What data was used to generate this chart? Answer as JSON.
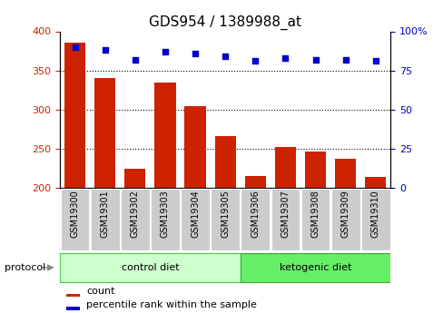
{
  "title": "GDS954 / 1389988_at",
  "samples": [
    "GSM19300",
    "GSM19301",
    "GSM19302",
    "GSM19303",
    "GSM19304",
    "GSM19305",
    "GSM19306",
    "GSM19307",
    "GSM19308",
    "GSM19309",
    "GSM19310"
  ],
  "counts": [
    385,
    340,
    224,
    335,
    304,
    266,
    215,
    252,
    246,
    237,
    214
  ],
  "percentile_ranks": [
    90,
    88,
    82,
    87,
    86,
    84,
    81,
    83,
    82,
    82,
    81
  ],
  "ylim_left": [
    200,
    400
  ],
  "ylim_right": [
    0,
    100
  ],
  "yticks_left": [
    200,
    250,
    300,
    350,
    400
  ],
  "yticks_right": [
    0,
    25,
    50,
    75,
    100
  ],
  "bar_color": "#cc2200",
  "dot_color": "#0000cc",
  "bar_bottom": 200,
  "ctrl_color": "#ccffcc",
  "keto_color": "#66ee66",
  "ctrl_border": "#44cc44",
  "keto_border": "#33aa33",
  "bg_color": "#ffffff",
  "tick_label_bg": "#cccccc",
  "title_fontsize": 11,
  "axis_fontsize": 8,
  "tick_fontsize": 7,
  "legend_fontsize": 8,
  "proto_fontsize": 8,
  "group_fontsize": 8,
  "dotted_lines": [
    250,
    300,
    350
  ],
  "n_ctrl": 6,
  "n_keto": 5
}
